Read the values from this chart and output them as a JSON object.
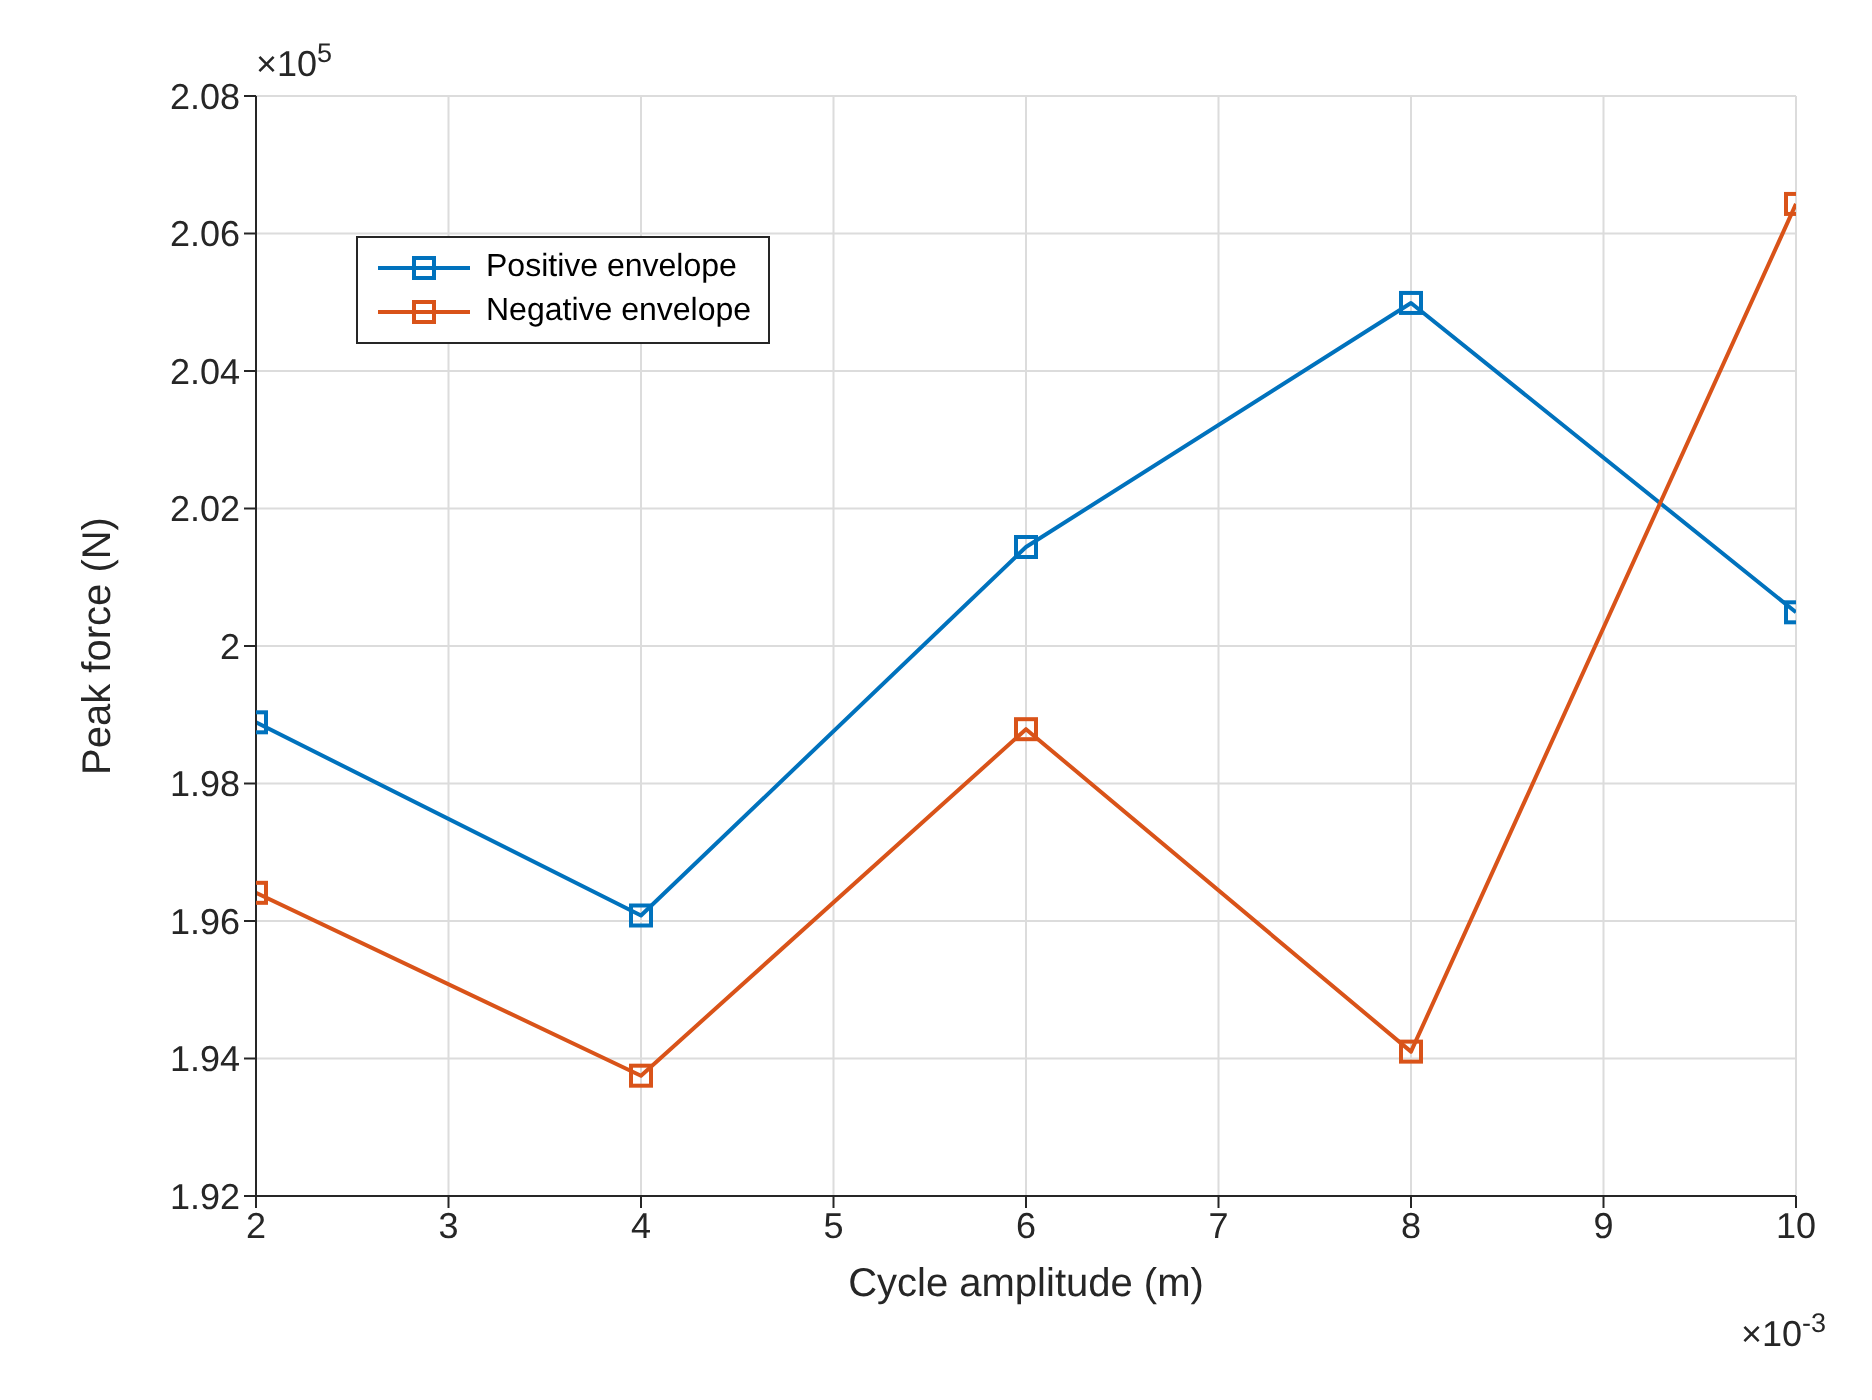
{
  "chart_data": {
    "type": "line",
    "xlabel": "Cycle amplitude (m)",
    "ylabel": "Peak force (N)",
    "x": [
      2,
      4,
      6,
      8,
      10
    ],
    "series": [
      {
        "name": "Positive envelope",
        "color": "#0072bd",
        "values": [
          1.9889,
          1.9608,
          2.0144,
          2.0499,
          2.0049
        ]
      },
      {
        "name": "Negative envelope",
        "color": "#d95319",
        "values": [
          1.9641,
          1.9375,
          1.9879,
          1.941,
          2.0643
        ]
      }
    ],
    "xlim": [
      2,
      10
    ],
    "xticks": [
      2,
      3,
      4,
      5,
      6,
      7,
      8,
      9,
      10
    ],
    "ylim": [
      1.92,
      2.08
    ],
    "yticks": [
      1.92,
      1.94,
      1.96,
      1.98,
      2,
      2.02,
      2.04,
      2.06,
      2.08
    ],
    "grid": true,
    "legend": "top left",
    "marker": "square",
    "line_style": "solid",
    "annotations": [
      "×10$^{5}$",
      "×10$^{-3}$"
    ]
  }
}
